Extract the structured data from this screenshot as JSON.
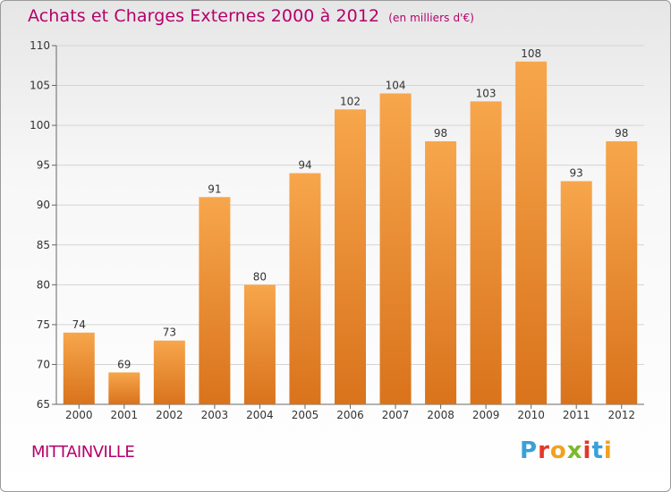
{
  "chart_data": {
    "type": "bar",
    "title": "Achats et Charges Externes 2000 à 2012",
    "subtitle": "(en milliers d'€)",
    "categories": [
      "2000",
      "2001",
      "2002",
      "2003",
      "2004",
      "2005",
      "2006",
      "2007",
      "2008",
      "2009",
      "2010",
      "2011",
      "2012"
    ],
    "values": [
      74,
      69,
      73,
      91,
      80,
      94,
      102,
      104,
      98,
      103,
      108,
      93,
      98
    ],
    "ylim": [
      65,
      110
    ],
    "yticks": [
      65,
      70,
      75,
      80,
      85,
      90,
      95,
      100,
      105,
      110
    ],
    "xlabel": "",
    "ylabel": "",
    "grid": true,
    "bar_color": "#f0922e"
  },
  "footer": {
    "place": "MITTAINVILLE",
    "logo_text": "Proxiti",
    "logo_colors": [
      "#3aa0d8",
      "#e2372a",
      "#f2a11e",
      "#7cb82f",
      "#e2372a",
      "#3aa0d8",
      "#f2a11e"
    ]
  }
}
